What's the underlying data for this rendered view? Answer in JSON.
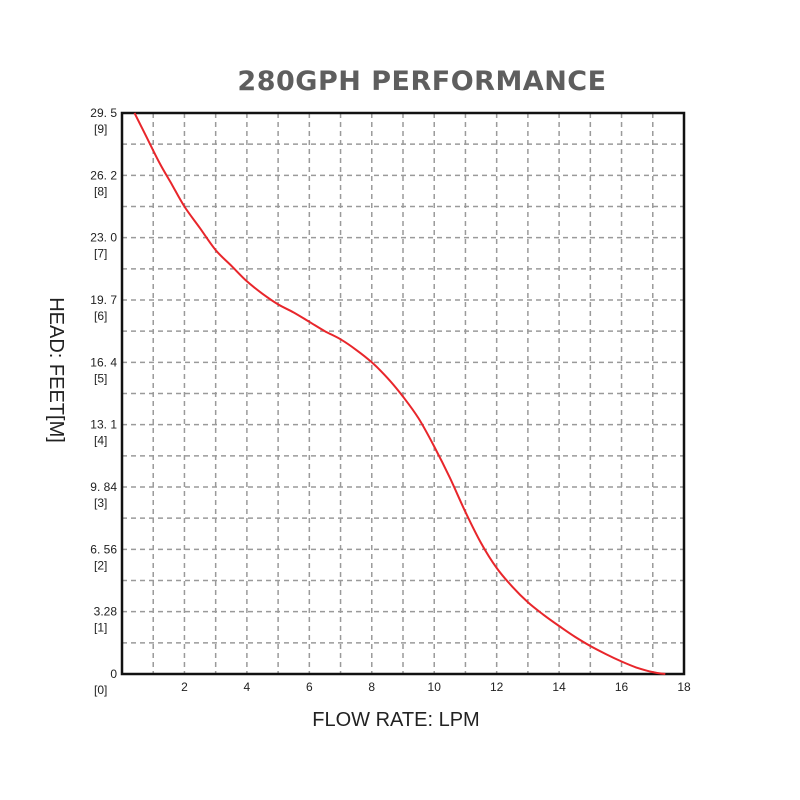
{
  "chart_data": {
    "type": "line",
    "title": "280GPH PERFORMANCE",
    "xlabel": "FLOW RATE: LPM",
    "ylabel": "HEAD: FEET[M]",
    "xlim": [
      0,
      18
    ],
    "ylim": [
      0,
      9
    ],
    "x_ticks": [
      {
        "value": 2,
        "label": "2"
      },
      {
        "value": 4,
        "label": "4"
      },
      {
        "value": 6,
        "label": "6"
      },
      {
        "value": 8,
        "label": "8"
      },
      {
        "value": 10,
        "label": "10"
      },
      {
        "value": 12,
        "label": "12"
      },
      {
        "value": 14,
        "label": "14"
      },
      {
        "value": 16,
        "label": "16"
      },
      {
        "value": 18,
        "label": "18"
      }
    ],
    "y_ticks": [
      {
        "value": 0,
        "feet": "0",
        "meters": "[0]"
      },
      {
        "value": 1,
        "feet": "3.28",
        "meters": "[1]"
      },
      {
        "value": 2,
        "feet": "6. 56",
        "meters": "[2]"
      },
      {
        "value": 3,
        "feet": "9. 84",
        "meters": "[3]"
      },
      {
        "value": 4,
        "feet": "13. 1",
        "meters": "[4]"
      },
      {
        "value": 5,
        "feet": "16. 4",
        "meters": "[5]"
      },
      {
        "value": 6,
        "feet": "19. 7",
        "meters": "[6]"
      },
      {
        "value": 7,
        "feet": "23. 0",
        "meters": "[7]"
      },
      {
        "value": 8,
        "feet": "26. 2",
        "meters": "[8]"
      },
      {
        "value": 9,
        "feet": "29. 5",
        "meters": "[9]"
      }
    ],
    "grid": true,
    "grid_step_x": 1,
    "grid_step_y": 0.5,
    "series": [
      {
        "name": "280GPH",
        "color": "#e8262b",
        "x": [
          0.4,
          0.8,
          1.2,
          1.6,
          2.0,
          2.5,
          3.0,
          3.5,
          4.0,
          4.5,
          5.0,
          5.5,
          6.0,
          6.5,
          7.0,
          7.5,
          8.0,
          8.5,
          9.0,
          9.5,
          10.0,
          10.5,
          11.0,
          11.5,
          12.0,
          12.5,
          13.0,
          13.5,
          14.0,
          14.5,
          15.0,
          15.5,
          16.0,
          16.5,
          17.0,
          17.4
        ],
        "y": [
          9.0,
          8.6,
          8.2,
          7.85,
          7.5,
          7.15,
          6.8,
          6.55,
          6.3,
          6.1,
          5.93,
          5.8,
          5.65,
          5.5,
          5.37,
          5.2,
          5.0,
          4.75,
          4.45,
          4.1,
          3.65,
          3.15,
          2.6,
          2.1,
          1.7,
          1.4,
          1.15,
          0.95,
          0.77,
          0.6,
          0.45,
          0.32,
          0.2,
          0.1,
          0.03,
          0.0
        ]
      }
    ]
  }
}
